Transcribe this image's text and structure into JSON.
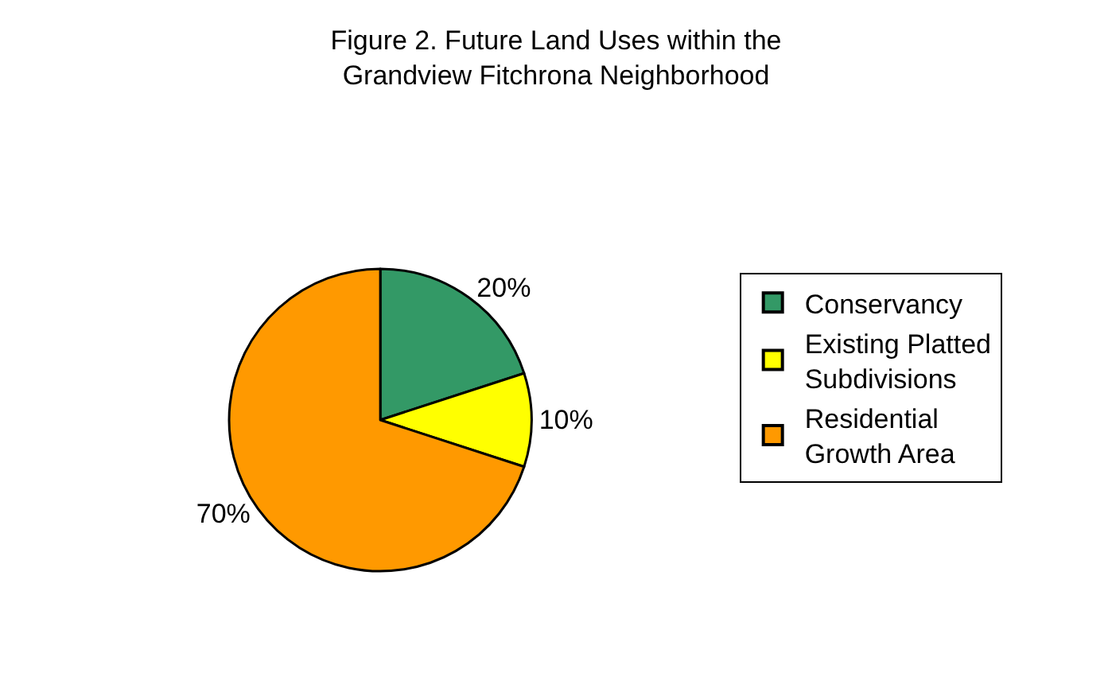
{
  "chart_data": {
    "type": "pie",
    "title": "Figure 2. Future Land Uses within the Grandview Fitchrona Neighborhood",
    "categories": [
      "Conservancy",
      "Existing Platted Subdivisions",
      "Residential Growth Area"
    ],
    "values": [
      20,
      10,
      70
    ],
    "value_labels": [
      "20%",
      "10%",
      "70%"
    ],
    "colors": [
      "#339966",
      "#ffff00",
      "#ff9900"
    ],
    "legend": "right"
  }
}
